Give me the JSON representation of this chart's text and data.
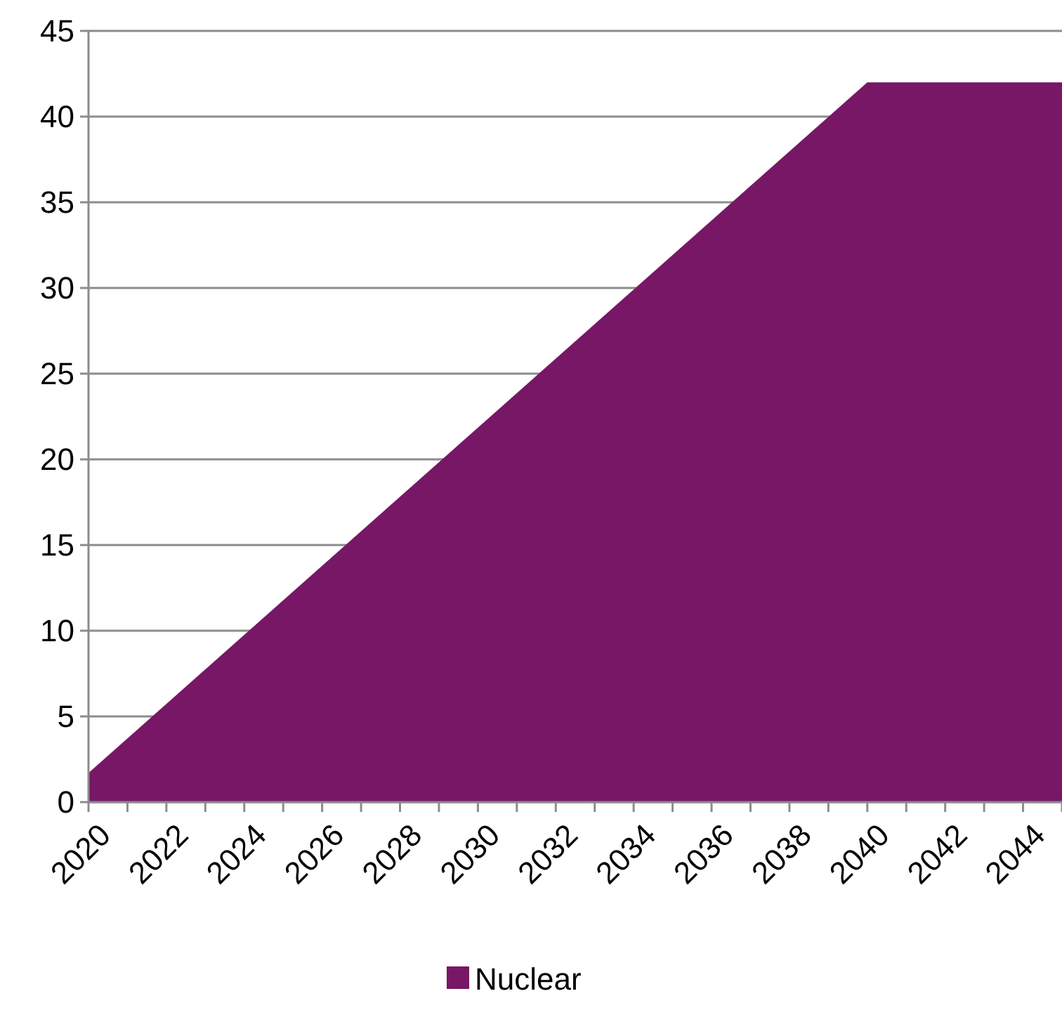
{
  "chart_data": {
    "type": "area",
    "x": [
      2020,
      2040,
      2045
    ],
    "series": [
      {
        "name": "Nuclear",
        "color": "#771766",
        "values": [
          1.7,
          42,
          42
        ]
      }
    ],
    "xlim": [
      2020,
      2045
    ],
    "xticks": [
      2020,
      {
        "value": 2021,
        "label": null
      },
      2022,
      {
        "value": 2023,
        "label": null
      },
      2024,
      {
        "value": 2025,
        "label": null
      },
      2026,
      {
        "value": 2027,
        "label": null
      },
      2028,
      {
        "value": 2029,
        "label": null
      },
      2030,
      {
        "value": 2031,
        "label": null
      },
      2032,
      {
        "value": 2033,
        "label": null
      },
      2034,
      {
        "value": 2035,
        "label": null
      },
      2036,
      {
        "value": 2037,
        "label": null
      },
      2038,
      {
        "value": 2039,
        "label": null
      },
      2040,
      {
        "value": 2041,
        "label": null
      },
      2042,
      {
        "value": 2043,
        "label": null
      },
      2044,
      {
        "value": 2045,
        "label": null
      }
    ],
    "ylim": [
      0,
      45
    ],
    "yticks": [
      0,
      5,
      10,
      15,
      20,
      25,
      30,
      35,
      40,
      45
    ],
    "grid": "y",
    "legend": "bottom"
  }
}
